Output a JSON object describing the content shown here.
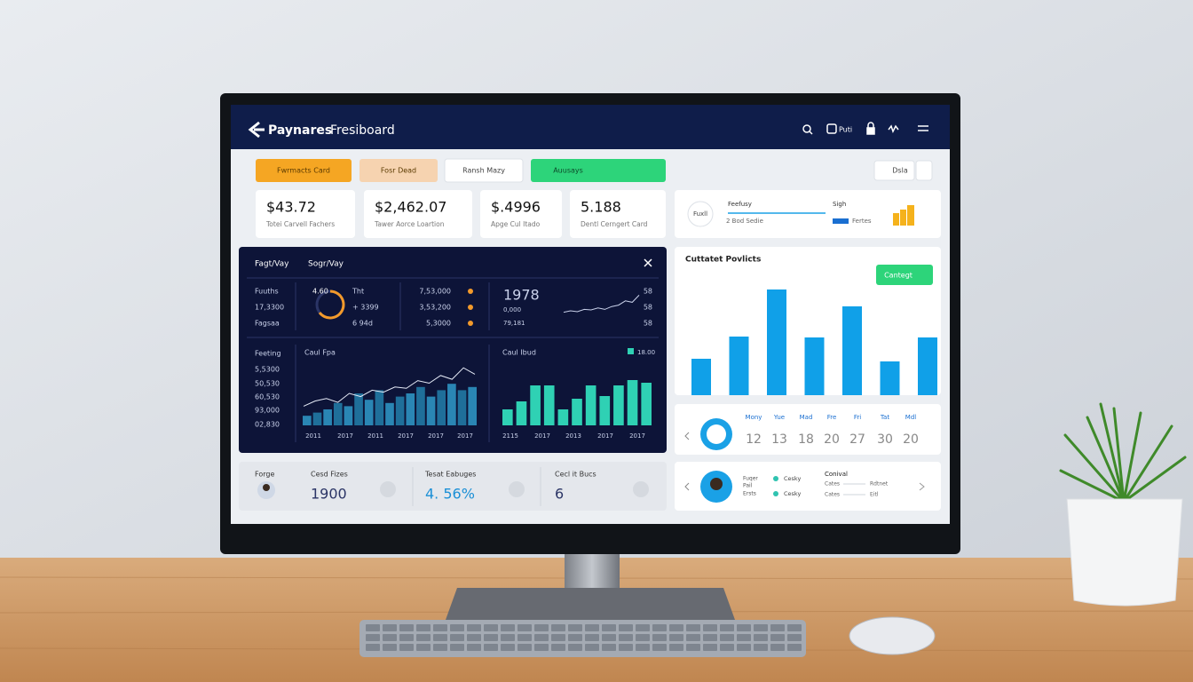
{
  "header": {
    "brand": "Paynares",
    "title": "Fresiboard",
    "user": "Puti"
  },
  "tabs": [
    "Fwrmacts Card",
    "Fosr Dead",
    "Ransh Mazy",
    "Auusays"
  ],
  "toolbar_button": "Dsla",
  "stats": [
    {
      "value": "$43.72",
      "label": "Totei Carvell Fachers"
    },
    {
      "value": "$2,462.07",
      "label": "Tawer Aorce Loartion"
    },
    {
      "value": "$.4996",
      "label": "Apge Cul Itado"
    },
    {
      "value": "5.188",
      "label": "Dentl Cerngert Card"
    }
  ],
  "summary_card": {
    "badge": "Fuxll",
    "title": "Feefusy",
    "note": "2 Bod Sedie",
    "right_title": "Sigh",
    "right_note": "Fertes"
  },
  "dark_panel": {
    "tabs": [
      "Fagt/Vay",
      "Sogr/Vay"
    ],
    "row_labels": [
      "Fuuths",
      "17,3300",
      "Fagsaa"
    ],
    "ring_value": "4.60",
    "ring_notes": [
      "Tht",
      "+ 3399",
      "6 94d"
    ],
    "figures": [
      "7,53,000",
      "3,53,200",
      "5,3000"
    ],
    "spark_value": "1978",
    "spark_notes": [
      "0,000",
      "79,181"
    ],
    "spark_ticks": [
      "58",
      "58",
      "58"
    ],
    "spark_ylim": [
      0,
      100
    ],
    "spark_values": [
      20,
      25,
      22,
      30,
      28,
      35,
      30,
      40,
      45,
      60,
      55,
      80
    ],
    "left_chart": {
      "title": "Caul Fpa",
      "side_label": "Feeting",
      "y_labels": [
        "5,5300",
        "50,530",
        "60,530",
        "93,000",
        "02,830"
      ],
      "x_labels": [
        "2011",
        "2017",
        "2011",
        "2017",
        "2017",
        "2017"
      ],
      "ylim": [
        0,
        100
      ],
      "bars": [
        15,
        20,
        25,
        35,
        30,
        50,
        40,
        55,
        35,
        45,
        50,
        60,
        45,
        55,
        65,
        55,
        60
      ],
      "line": [
        30,
        38,
        42,
        36,
        50,
        45,
        55,
        52,
        60,
        58,
        70,
        66,
        78,
        72,
        90,
        80
      ]
    },
    "right_chart": {
      "title": "Caul Ibud",
      "legend": "18.00",
      "x_labels": [
        "2115",
        "2017",
        "2013",
        "2017",
        "2017"
      ],
      "ylim": [
        0,
        100
      ],
      "bars": [
        30,
        45,
        75,
        75,
        30,
        50,
        75,
        55,
        75,
        85,
        80
      ]
    }
  },
  "bar_card": {
    "title": "Cuttatet Povlicts",
    "button": "Cantegt",
    "ylim": [
      0,
      120
    ],
    "values": [
      41,
      66,
      119,
      65,
      100,
      38,
      65
    ]
  },
  "calendar": {
    "days": [
      "Mony",
      "Yue",
      "Mad",
      "Fre",
      "Fri",
      "Tat",
      "Mdl"
    ],
    "dates": [
      "12",
      "13",
      "18",
      "20",
      "27",
      "30",
      "20"
    ]
  },
  "profile": {
    "notes": [
      "Fuqer",
      "Pail",
      "Ersts"
    ],
    "items": [
      "Cesky",
      "Cesky"
    ],
    "title": "Conival",
    "details": [
      "Cates",
      "Rdtnet",
      "Cates",
      "Eitl"
    ]
  },
  "footer": [
    {
      "label": "Forge"
    },
    {
      "label": "Cesd Fizes",
      "value": "1900"
    },
    {
      "label": "Tesat Eabuges",
      "value": "4. 56%"
    },
    {
      "label": "Cecl it Bucs",
      "value": "6"
    }
  ]
}
